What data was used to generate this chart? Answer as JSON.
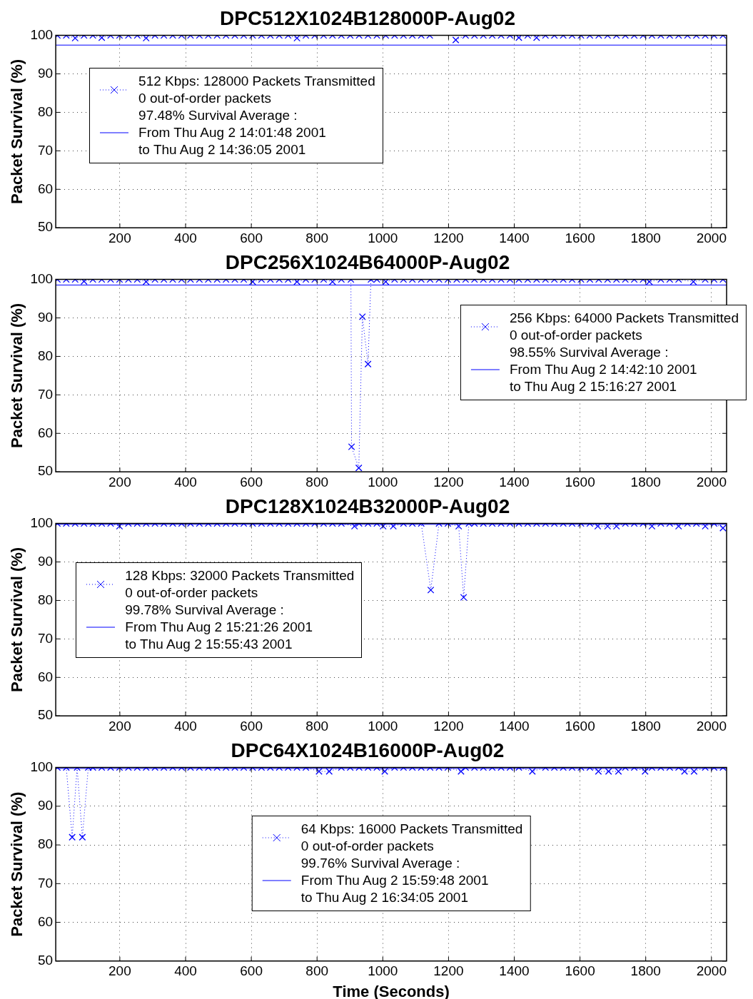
{
  "chart_data": [
    {
      "type": "line",
      "title": "DPC512X1024B128000P-Aug02",
      "ylabel": "Packet Survival (%)",
      "xlim": [
        5,
        2046
      ],
      "ylim": [
        50,
        100
      ],
      "xticks": [
        200,
        400,
        600,
        800,
        1000,
        1200,
        1400,
        1600,
        1800,
        2000
      ],
      "yticks": [
        50,
        60,
        70,
        80,
        90,
        100
      ],
      "grid": true,
      "legend": "top left",
      "series": [
        {
          "name": "512 Kbps: 128000 Packets Transmitted\n0 out-of-order packets",
          "color": "#0000ff",
          "marker": "cross",
          "line_style": "dotted",
          "x": [
            10,
            37,
            64,
            91,
            118,
            145,
            172,
            199,
            226,
            253,
            280,
            307,
            334,
            361,
            388,
            415,
            442,
            469,
            496,
            523,
            550,
            577,
            604,
            631,
            658,
            685,
            712,
            739,
            766,
            793,
            820,
            847,
            874,
            901,
            928,
            955,
            982,
            1009,
            1036,
            1063,
            1090,
            1117,
            1143,
            1157,
            1218,
            1222,
            1252,
            1279,
            1306,
            1333,
            1360,
            1387,
            1414,
            1441,
            1468,
            1495,
            1522,
            1549,
            1576,
            1603,
            1630,
            1657,
            1684,
            1711,
            1738,
            1765,
            1792,
            1819,
            1846,
            1873,
            1900,
            1927,
            1954,
            1981,
            2008,
            2035
          ],
          "values": [
            100,
            100,
            99.3,
            100,
            100,
            99.4,
            100,
            100,
            100,
            100,
            99.3,
            100,
            100,
            100,
            100,
            100,
            100,
            100,
            100,
            100,
            100,
            100,
            100,
            100,
            100,
            100,
            100,
            99.3,
            100,
            100,
            100,
            100,
            100,
            100,
            100,
            100,
            100,
            100,
            100,
            100,
            100,
            100,
            100,
            null,
            null,
            98.8,
            100,
            100,
            100,
            100,
            100,
            100,
            99.4,
            100,
            99.4,
            100,
            100,
            100,
            100,
            100,
            100,
            100,
            100,
            100,
            100,
            100,
            100,
            100,
            100,
            100,
            100,
            100,
            100,
            100,
            100,
            100
          ]
        },
        {
          "name": "97.48% Survival Average :\nFrom Thu Aug 2 14:01:48 2001\nto Thu Aug 2 14:36:05 2001",
          "color": "#0000ff",
          "marker": "none",
          "line_style": "solid",
          "x": [
            5,
            2046
          ],
          "values": [
            97.48,
            97.48
          ]
        }
      ]
    },
    {
      "type": "line",
      "title": "DPC256X1024B64000P-Aug02",
      "ylabel": "Packet Survival (%)",
      "xlim": [
        5,
        2046
      ],
      "ylim": [
        50,
        100
      ],
      "xticks": [
        200,
        400,
        600,
        800,
        1000,
        1200,
        1400,
        1600,
        1800,
        2000
      ],
      "yticks": [
        50,
        60,
        70,
        80,
        90,
        100
      ],
      "grid": true,
      "legend": "right",
      "series": [
        {
          "name": "256 Kbps: 64000 Packets Transmitted\n0 out-of-order packets",
          "color": "#0000ff",
          "marker": "cross",
          "line_style": "dotted",
          "x": [
            10,
            37,
            64,
            91,
            118,
            145,
            172,
            199,
            226,
            253,
            280,
            307,
            334,
            361,
            388,
            415,
            442,
            469,
            496,
            523,
            550,
            577,
            604,
            631,
            658,
            685,
            712,
            739,
            766,
            793,
            820,
            847,
            874,
            903,
            905,
            927,
            938,
            955,
            964,
            982,
            1009,
            1036,
            1063,
            1090,
            1117,
            1144,
            1171,
            1198,
            1225,
            1252,
            1279,
            1306,
            1333,
            1360,
            1387,
            1414,
            1441,
            1468,
            1495,
            1522,
            1549,
            1576,
            1603,
            1630,
            1657,
            1684,
            1711,
            1738,
            1765,
            1792,
            1811,
            1846,
            1873,
            1900,
            1945,
            1981,
            2008,
            2035
          ],
          "values": [
            100,
            100,
            100,
            99.5,
            100,
            100,
            100,
            100,
            100,
            100,
            99.4,
            100,
            100,
            100,
            100,
            100,
            100,
            100,
            100,
            100,
            100,
            100,
            99.4,
            100,
            100,
            100,
            100,
            99.4,
            100,
            100,
            100,
            99.4,
            100,
            100,
            56.5,
            51,
            90.3,
            78,
            100,
            100,
            99.4,
            100,
            100,
            100,
            100,
            100,
            100,
            100,
            100,
            100,
            100,
            100,
            100,
            100,
            100,
            100,
            100,
            100,
            100,
            100,
            100,
            100,
            100,
            100,
            100,
            100,
            100,
            100,
            100,
            100,
            99.4,
            100,
            100,
            100,
            99.4,
            100,
            100,
            100
          ]
        },
        {
          "name": "98.55% Survival Average :\nFrom Thu Aug 2 14:42:10 2001\nto Thu Aug 2 15:16:27 2001",
          "color": "#0000ff",
          "marker": "none",
          "line_style": "solid",
          "x": [
            5,
            2046
          ],
          "values": [
            98.55,
            98.55
          ]
        }
      ]
    },
    {
      "type": "line",
      "title": "DPC128X1024B32000P-Aug02",
      "ylabel": "Packet Survival (%)",
      "xlim": [
        5,
        2046
      ],
      "ylim": [
        50,
        100
      ],
      "xticks": [
        200,
        400,
        600,
        800,
        1000,
        1200,
        1400,
        1600,
        1800,
        2000
      ],
      "yticks": [
        50,
        60,
        70,
        80,
        90,
        100
      ],
      "grid": true,
      "legend": "left",
      "series": [
        {
          "name": "128 Kbps: 32000 Packets Transmitted\n0 out-of-order packets",
          "color": "#0000ff",
          "marker": "cross",
          "line_style": "dotted",
          "x": [
            10,
            37,
            64,
            91,
            118,
            145,
            172,
            199,
            226,
            253,
            280,
            307,
            334,
            361,
            388,
            415,
            442,
            469,
            496,
            523,
            550,
            577,
            604,
            631,
            658,
            685,
            712,
            739,
            766,
            793,
            820,
            847,
            874,
            914,
            928,
            955,
            982,
            1001,
            1032,
            1063,
            1090,
            1117,
            1146,
            1171,
            1198,
            1231,
            1246,
            1262,
            1279,
            1306,
            1333,
            1360,
            1387,
            1414,
            1441,
            1468,
            1495,
            1522,
            1549,
            1576,
            1603,
            1630,
            1654,
            1684,
            1711,
            1738,
            1765,
            1792,
            1819,
            1846,
            1873,
            1900,
            1927,
            1954,
            1981,
            2008,
            2035
          ],
          "values": [
            100,
            100,
            100,
            100,
            100,
            100,
            100,
            99.3,
            100,
            100,
            100,
            100,
            100,
            100,
            100,
            100,
            100,
            100,
            100,
            100,
            100,
            100,
            100,
            100,
            100,
            100,
            100,
            100,
            100,
            100,
            100,
            100,
            100,
            99.3,
            100,
            100,
            100,
            99.3,
            99.3,
            100,
            100,
            100,
            82.7,
            100,
            100,
            99.3,
            80.8,
            100,
            100,
            100,
            100,
            100,
            100,
            100,
            100,
            100,
            100,
            100,
            100,
            100,
            100,
            100,
            99.3,
            99.3,
            99.3,
            100,
            100,
            100,
            99.3,
            100,
            100,
            99.3,
            100,
            100,
            99.3,
            100,
            98.8
          ]
        },
        {
          "name": "99.78% Survival Average :\nFrom Thu Aug 2 15:21:26 2001\nto Thu Aug 2 15:55:43 2001",
          "color": "#0000ff",
          "marker": "none",
          "line_style": "solid",
          "x": [
            5,
            2046
          ],
          "values": [
            99.78,
            99.78
          ]
        }
      ]
    },
    {
      "type": "line",
      "title": "DPC64X1024B16000P-Aug02",
      "xlabel": "Time (Seconds)",
      "ylabel": "Packet Survival (%)",
      "xlim": [
        5,
        2046
      ],
      "ylim": [
        50,
        100
      ],
      "xticks": [
        200,
        400,
        600,
        800,
        1000,
        1200,
        1400,
        1600,
        1800,
        2000
      ],
      "yticks": [
        50,
        60,
        70,
        80,
        90,
        100
      ],
      "grid": true,
      "legend": "bottom",
      "series": [
        {
          "name": "64 Kbps: 16000 Packets Transmitted\n0 out-of-order packets",
          "color": "#0000ff",
          "marker": "cross",
          "line_style": "dotted",
          "x": [
            10,
            37,
            55,
            70,
            86,
            104,
            118,
            145,
            172,
            199,
            226,
            253,
            280,
            307,
            334,
            361,
            388,
            415,
            442,
            469,
            496,
            523,
            550,
            577,
            604,
            631,
            658,
            685,
            712,
            739,
            766,
            806,
            837,
            874,
            901,
            928,
            955,
            982,
            1006,
            1036,
            1063,
            1090,
            1117,
            1144,
            1171,
            1198,
            1238,
            1252,
            1279,
            1306,
            1333,
            1360,
            1387,
            1414,
            1455,
            1495,
            1522,
            1549,
            1576,
            1603,
            1630,
            1656,
            1687,
            1717,
            1738,
            1765,
            1798,
            1819,
            1846,
            1873,
            1900,
            1918,
            1947,
            1981,
            2008,
            2035
          ],
          "values": [
            100,
            100,
            82,
            100,
            82,
            100,
            100,
            100,
            100,
            100,
            100,
            100,
            100,
            100,
            100,
            100,
            100,
            100,
            100,
            100,
            100,
            100,
            100,
            100,
            100,
            100,
            100,
            100,
            100,
            100,
            100,
            99,
            99,
            100,
            100,
            100,
            100,
            100,
            99,
            100,
            100,
            100,
            100,
            100,
            100,
            100,
            99,
            100,
            100,
            100,
            100,
            100,
            100,
            100,
            99,
            100,
            100,
            100,
            100,
            100,
            100,
            99,
            99,
            99,
            100,
            100,
            99,
            100,
            100,
            100,
            100,
            99,
            99,
            100,
            100,
            100
          ]
        },
        {
          "name": "99.76% Survival Average :\nFrom Thu Aug 2 15:59:48 2001\nto Thu Aug 2 16:34:05 2001",
          "color": "#0000ff",
          "marker": "none",
          "line_style": "solid",
          "x": [
            5,
            2046
          ],
          "values": [
            99.76,
            99.76
          ]
        }
      ]
    }
  ]
}
